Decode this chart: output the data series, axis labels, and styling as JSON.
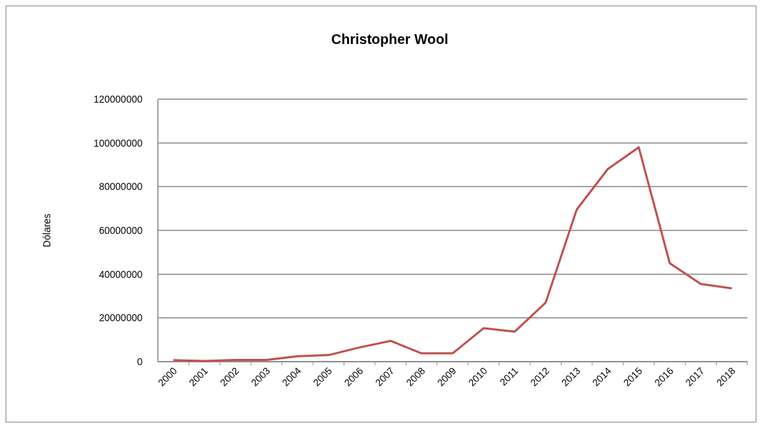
{
  "chart_data": {
    "type": "line",
    "title": "Christopher Wool",
    "ylabel": "Dólares",
    "categories": [
      "2000",
      "2001",
      "2002",
      "2003",
      "2004",
      "2005",
      "2006",
      "2007",
      "2008",
      "2009",
      "2010",
      "2011",
      "2012",
      "2013",
      "2014",
      "2015",
      "2016",
      "2017",
      "2018"
    ],
    "series": [
      {
        "color": "#c0504d",
        "values": [
          700000,
          300000,
          800000,
          800000,
          2500000,
          3000000,
          6500000,
          9500000,
          3800000,
          3800000,
          15300000,
          13700000,
          27000000,
          69500000,
          88000000,
          98000000,
          45000000,
          35500000,
          33500000
        ]
      }
    ],
    "ylim": [
      0,
      120000000
    ],
    "yticks": [
      0,
      20000000,
      40000000,
      60000000,
      80000000,
      100000000,
      120000000
    ],
    "grid": "y",
    "marker": "none",
    "line_style": "solid"
  }
}
